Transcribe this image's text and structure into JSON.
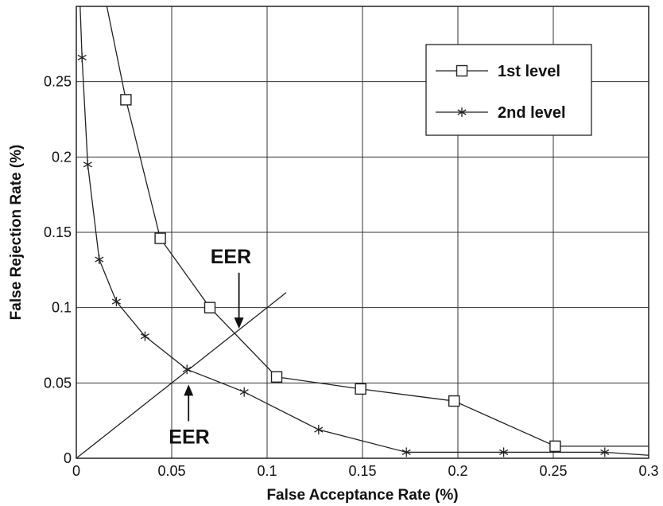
{
  "chart_data": {
    "type": "line",
    "title": "",
    "xlabel": "False Acceptance Rate (%)",
    "ylabel": "False Rejection Rate (%)",
    "xlim": [
      0,
      0.3
    ],
    "ylim": [
      0,
      0.3
    ],
    "xticks": [
      0,
      0.05,
      0.1,
      0.15,
      0.2,
      0.25,
      0.3
    ],
    "yticks": [
      0,
      0.05,
      0.1,
      0.15,
      0.2,
      0.25
    ],
    "xtick_labels": [
      "0",
      "0.05",
      "0.1",
      "0.15",
      "0.2",
      "0.25",
      "0.3"
    ],
    "ytick_labels": [
      "0",
      "0.05",
      "0.1",
      "0.15",
      "0.2",
      "0.25"
    ],
    "grid": true,
    "legend_position": "top-right",
    "series": [
      {
        "name": "1st level",
        "marker": "square",
        "line_start": [
          0.016,
          0.31
        ],
        "x": [
          0.026,
          0.044,
          0.07,
          0.105,
          0.149,
          0.198,
          0.251
        ],
        "y": [
          0.238,
          0.146,
          0.1,
          0.054,
          0.046,
          0.038,
          0.008
        ],
        "line_end": [
          0.3,
          0.008
        ]
      },
      {
        "name": "2nd level",
        "marker": "asterisk",
        "line_start": [
          0.002,
          0.31
        ],
        "x": [
          0.003,
          0.006,
          0.012,
          0.021,
          0.036,
          0.058,
          0.088,
          0.127,
          0.173,
          0.224,
          0.277
        ],
        "y": [
          0.266,
          0.195,
          0.132,
          0.104,
          0.081,
          0.059,
          0.044,
          0.019,
          0.004,
          0.004,
          0.004
        ],
        "line_end": [
          0.3,
          0.002
        ]
      }
    ],
    "reference_line": {
      "from": [
        0,
        0
      ],
      "to": [
        0.11,
        0.11
      ]
    },
    "annotations": [
      {
        "text": "EER",
        "arrow_to": [
          0.084,
          0.085
        ],
        "label_at": [
          0.081,
          0.12
        ]
      },
      {
        "text": "EER",
        "arrow_to": [
          0.058,
          0.05
        ],
        "label_at": [
          0.06,
          0.013
        ]
      }
    ]
  }
}
